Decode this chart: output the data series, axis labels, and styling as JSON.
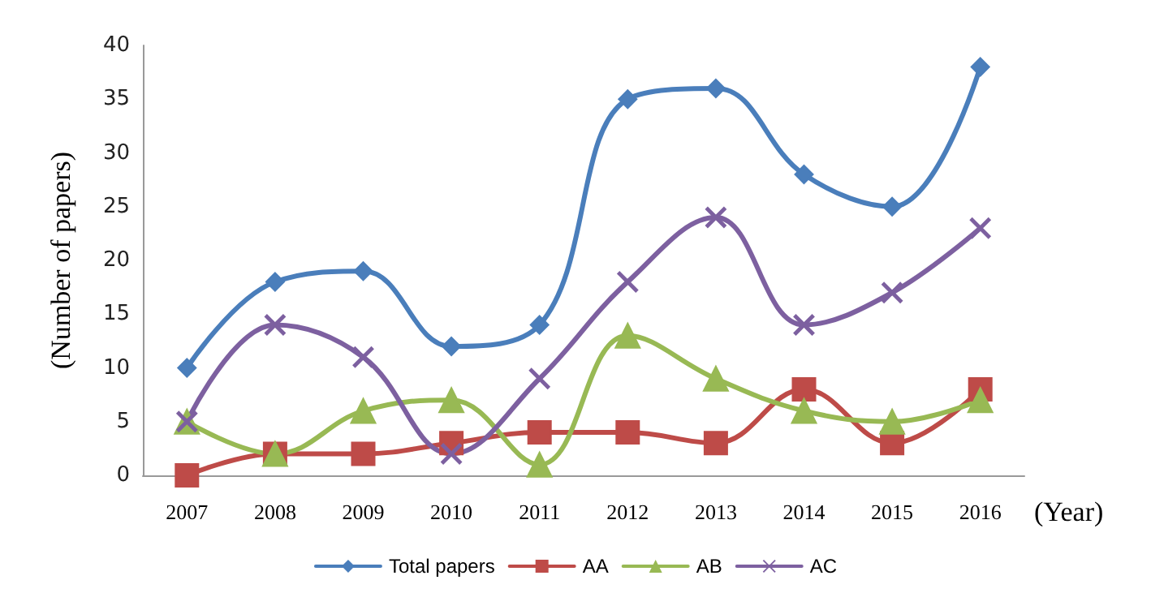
{
  "chart_data": {
    "type": "line",
    "xlabel": "(Year)",
    "ylabel": "(Number of papers)",
    "categories": [
      "2007",
      "2008",
      "2009",
      "2010",
      "2011",
      "2012",
      "2013",
      "2014",
      "2015",
      "2016"
    ],
    "series": [
      {
        "name": "Total papers",
        "color": "#4a7ebb",
        "marker": "diamond",
        "values": [
          10,
          18,
          19,
          12,
          14,
          35,
          36,
          28,
          25,
          38
        ]
      },
      {
        "name": "AA",
        "color": "#be4b48",
        "marker": "square",
        "values": [
          0,
          2,
          2,
          3,
          4,
          4,
          3,
          8,
          3,
          8
        ]
      },
      {
        "name": "AB",
        "color": "#98b954",
        "marker": "triangle",
        "values": [
          5,
          2,
          6,
          7,
          1,
          13,
          9,
          6,
          5,
          7
        ]
      },
      {
        "name": "AC",
        "color": "#7d60a0",
        "marker": "cross",
        "values": [
          5,
          14,
          11,
          2,
          9,
          18,
          24,
          14,
          17,
          23
        ]
      }
    ],
    "ylim": [
      0,
      40
    ],
    "yticks": [
      0,
      5,
      10,
      15,
      20,
      25,
      30,
      35,
      40
    ],
    "grid": false,
    "legend": "bottom"
  }
}
